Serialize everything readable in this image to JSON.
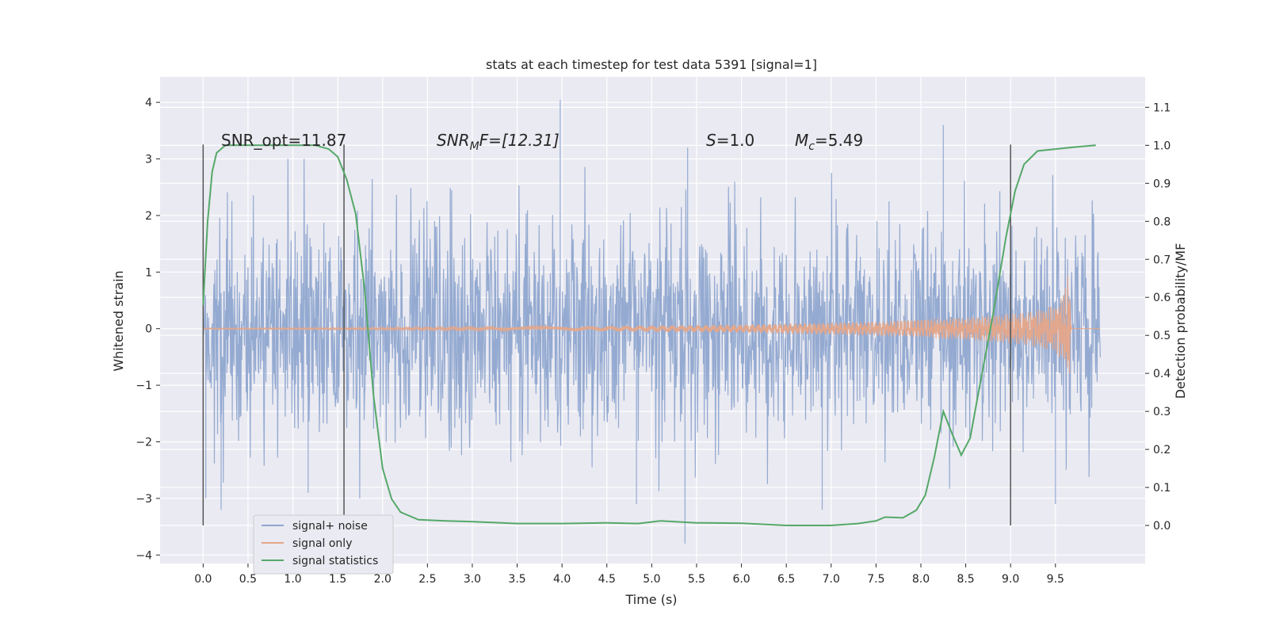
{
  "chart_data": {
    "type": "line",
    "title": "stats at each timestep for test data 5391 [signal=1]",
    "xlabel": "Time (s)",
    "ylabel": "Whitened strain",
    "y2label": "Detection probability/MF",
    "xlim": [
      -0.48,
      10.5
    ],
    "ylim": [
      -4.15,
      4.45
    ],
    "y2lim": [
      -0.1,
      1.18
    ],
    "xticks": [
      0.0,
      0.5,
      1.0,
      1.5,
      2.0,
      2.5,
      3.0,
      3.5,
      4.0,
      4.5,
      5.0,
      5.5,
      6.0,
      6.5,
      7.0,
      7.5,
      8.0,
      8.5,
      9.0,
      9.5
    ],
    "xtick_labels": [
      "0.0",
      "0.5",
      "1.0",
      "1.5",
      "2.0",
      "2.5",
      "3.0",
      "3.5",
      "4.0",
      "4.5",
      "5.0",
      "5.5",
      "6.0",
      "6.5",
      "7.0",
      "7.5",
      "8.0",
      "8.5",
      "9.0",
      "9.5"
    ],
    "yticks": [
      -4,
      -3,
      -2,
      -1,
      0,
      1,
      2,
      3,
      4
    ],
    "ytick_labels": [
      "−4",
      "−3",
      "−2",
      "−1",
      "0",
      "1",
      "2",
      "3",
      "4"
    ],
    "y2ticks": [
      0.0,
      0.1,
      0.2,
      0.3,
      0.4,
      0.5,
      0.6,
      0.7,
      0.8,
      0.9,
      1.0,
      1.1
    ],
    "y2tick_labels": [
      "0.0",
      "0.1",
      "0.2",
      "0.3",
      "0.4",
      "0.5",
      "0.6",
      "0.7",
      "0.8",
      "0.9",
      "1.0",
      "1.1"
    ],
    "grid": true,
    "legend_position": "lower-left",
    "annotations": {
      "snr_opt": "SNR_opt=11.87",
      "snr_mf_base": "SNR",
      "snr_mf_sub": "M",
      "snr_mf_rest": "F=[12.31]",
      "s_var": "S",
      "s_val": "=1.0",
      "mc_var": "M",
      "mc_sub": "c",
      "mc_val": "=5.49"
    },
    "vlines": [
      0.0,
      1.57,
      9.0
    ],
    "series": [
      {
        "name": "signal+ noise",
        "color": "#8fa6cf",
        "description": "noisy whitened strain, roughly Gaussian, std about 1, sampled 0 to 10 s",
        "envelope_typical": 1.3,
        "spikes": [
          [
            0.03,
            -3.0
          ],
          [
            0.2,
            -3.2
          ],
          [
            1.17,
            -2.9
          ],
          [
            3.98,
            4.05
          ],
          [
            4.83,
            -3.1
          ],
          [
            5.37,
            -3.8
          ],
          [
            5.4,
            3.2
          ],
          [
            6.9,
            -3.2
          ],
          [
            8.25,
            3.6
          ],
          [
            9.5,
            -3.1
          ]
        ]
      },
      {
        "name": "signal only",
        "color": "#e4a68a",
        "description": "chirp signal growing in amplitude, merger near 9.65 s",
        "amplitude_points": [
          [
            0.0,
            0.01
          ],
          [
            2.0,
            0.02
          ],
          [
            4.0,
            0.04
          ],
          [
            6.0,
            0.08
          ],
          [
            7.5,
            0.14
          ],
          [
            8.5,
            0.22
          ],
          [
            9.2,
            0.32
          ],
          [
            9.5,
            0.45
          ],
          [
            9.6,
            0.7
          ],
          [
            9.65,
            1.15
          ],
          [
            9.68,
            0.0
          ]
        ]
      },
      {
        "name": "signal statistics",
        "color": "#55a868",
        "axis": "right",
        "x": [
          0.0,
          0.05,
          0.1,
          0.15,
          0.25,
          0.5,
          1.0,
          1.25,
          1.4,
          1.5,
          1.6,
          1.7,
          1.8,
          1.9,
          2.0,
          2.1,
          2.2,
          2.4,
          2.7,
          3.0,
          3.5,
          4.0,
          4.5,
          4.85,
          5.1,
          5.5,
          6.0,
          6.5,
          7.0,
          7.3,
          7.5,
          7.6,
          7.8,
          7.95,
          8.05,
          8.15,
          8.25,
          8.35,
          8.45,
          8.55,
          8.65,
          8.8,
          8.95,
          9.05,
          9.15,
          9.3,
          9.5,
          9.7,
          9.95
        ],
        "y": [
          0.58,
          0.8,
          0.93,
          0.98,
          1.0,
          1.0,
          1.0,
          1.0,
          0.99,
          0.97,
          0.91,
          0.82,
          0.62,
          0.34,
          0.15,
          0.07,
          0.035,
          0.015,
          0.012,
          0.01,
          0.005,
          0.005,
          0.007,
          0.005,
          0.012,
          0.007,
          0.006,
          0.0,
          0.0,
          0.005,
          0.012,
          0.022,
          0.02,
          0.04,
          0.08,
          0.18,
          0.3,
          0.24,
          0.185,
          0.23,
          0.36,
          0.55,
          0.76,
          0.88,
          0.95,
          0.985,
          0.99,
          0.995,
          1.0
        ]
      }
    ]
  }
}
